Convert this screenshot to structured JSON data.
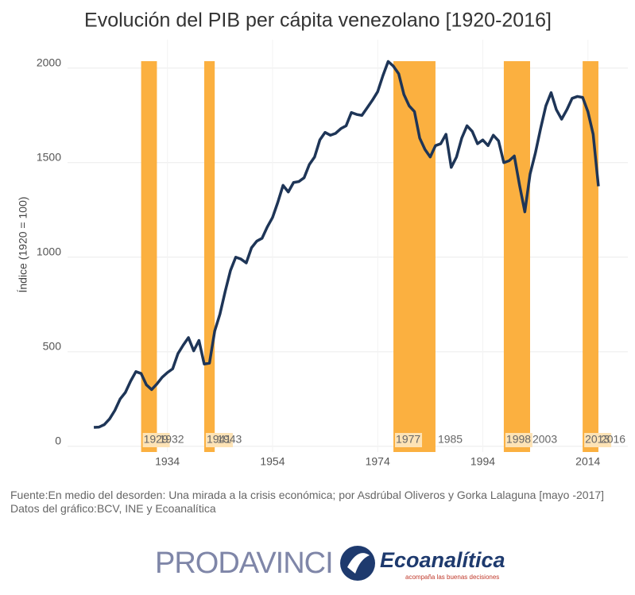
{
  "chart_data": {
    "type": "line",
    "title": "Evolución del PIB per cápita venezolano [1920-2016]",
    "y_label": "Índice (1920 = 100)",
    "x": [
      1920,
      1921,
      1922,
      1923,
      1924,
      1925,
      1926,
      1927,
      1928,
      1929,
      1930,
      1931,
      1932,
      1933,
      1934,
      1935,
      1936,
      1937,
      1938,
      1939,
      1940,
      1941,
      1942,
      1943,
      1944,
      1945,
      1946,
      1947,
      1948,
      1949,
      1950,
      1951,
      1952,
      1953,
      1954,
      1955,
      1956,
      1957,
      1958,
      1959,
      1960,
      1961,
      1962,
      1963,
      1964,
      1965,
      1966,
      1967,
      1968,
      1969,
      1970,
      1971,
      1972,
      1973,
      1974,
      1975,
      1976,
      1977,
      1978,
      1979,
      1980,
      1981,
      1982,
      1983,
      1984,
      1985,
      1986,
      1987,
      1988,
      1989,
      1990,
      1991,
      1992,
      1993,
      1994,
      1995,
      1996,
      1997,
      1998,
      1999,
      2000,
      2001,
      2002,
      2003,
      2004,
      2005,
      2006,
      2007,
      2008,
      2009,
      2010,
      2011,
      2012,
      2013,
      2014,
      2015,
      2016
    ],
    "series": [
      {
        "name": "PIB per cápita",
        "color": "#1e3557",
        "values": [
          100,
          102,
          115,
          145,
          190,
          250,
          285,
          345,
          395,
          385,
          325,
          300,
          330,
          365,
          390,
          410,
          490,
          535,
          575,
          505,
          560,
          435,
          440,
          610,
          700,
          820,
          930,
          1000,
          990,
          970,
          1050,
          1085,
          1100,
          1160,
          1210,
          1290,
          1380,
          1345,
          1395,
          1400,
          1420,
          1490,
          1530,
          1620,
          1660,
          1645,
          1655,
          1680,
          1695,
          1765,
          1755,
          1750,
          1790,
          1830,
          1875,
          1960,
          2035,
          2010,
          1970,
          1860,
          1800,
          1770,
          1630,
          1570,
          1530,
          1590,
          1600,
          1650,
          1475,
          1530,
          1630,
          1695,
          1665,
          1600,
          1620,
          1590,
          1645,
          1615,
          1500,
          1510,
          1535,
          1380,
          1240,
          1440,
          1550,
          1680,
          1800,
          1870,
          1780,
          1730,
          1780,
          1840,
          1850,
          1845,
          1770,
          1650,
          1375
        ]
      }
    ],
    "bands": [
      {
        "start": 1929,
        "end": 1932
      },
      {
        "start": 1941,
        "end": 1943
      },
      {
        "start": 1977,
        "end": 1985
      },
      {
        "start": 1998,
        "end": 2003
      },
      {
        "start": 2013,
        "end": 2016
      }
    ],
    "band_color": "#fbb040",
    "xlim": [
      1915,
      2021.6
    ],
    "xticks": [
      1934,
      1954,
      1974,
      1994,
      2014
    ],
    "ylim": [
      -30,
      2150
    ],
    "yticks": [
      0,
      500,
      1000,
      1500,
      2000
    ],
    "grid": true
  },
  "footer": {
    "source": "Fuente:En medio del desorden: Una mirada a la crisis económica; por Asdrúbal Oliveros y Gorka Lalaguna [mayo -2017]",
    "data_note": "Datos del gráfico:BCV, INE y Ecoanalítica",
    "logo1": "PRODAVINCI",
    "logo2": "Ecoanalítica",
    "logo2_tagline": "acompaña las buenas decisiones"
  }
}
